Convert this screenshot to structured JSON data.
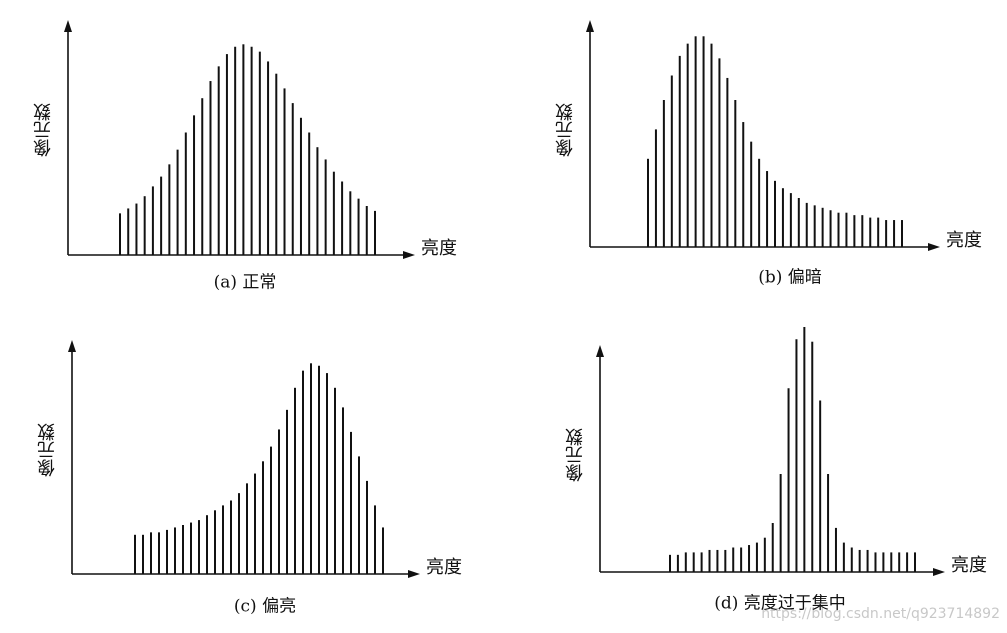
{
  "chart_data": [
    {
      "type": "bar",
      "title": "(a) 正常",
      "x_label": "亮度",
      "y_label": "像元数",
      "color": "#111111",
      "ylim": [
        0,
        100
      ],
      "values": [
        17,
        19,
        21,
        24,
        28,
        32,
        37,
        43,
        50,
        57,
        64,
        71,
        77,
        82,
        85,
        86,
        85,
        83,
        79,
        74,
        68,
        62,
        56,
        50,
        44,
        39,
        34,
        30,
        26,
        23,
        20,
        18
      ]
    },
    {
      "type": "bar",
      "title": "(b) 偏暗",
      "x_label": "亮度",
      "y_label": "像元数",
      "color": "#111111",
      "ylim": [
        0,
        100
      ],
      "values": [
        36,
        48,
        60,
        70,
        78,
        83,
        86,
        86,
        83,
        77,
        69,
        60,
        51,
        43,
        36,
        31,
        27,
        24,
        22,
        20,
        18,
        17,
        16,
        15,
        14,
        14,
        13,
        13,
        12,
        12,
        11,
        11,
        11
      ]
    },
    {
      "type": "bar",
      "title": "(c) 偏亮",
      "x_label": "亮度",
      "y_label": "像元数",
      "color": "#111111",
      "ylim": [
        0,
        100
      ],
      "values": [
        16,
        16,
        17,
        17,
        18,
        19,
        20,
        21,
        22,
        24,
        26,
        28,
        30,
        33,
        37,
        41,
        46,
        52,
        59,
        67,
        76,
        83,
        86,
        85,
        82,
        76,
        68,
        58,
        48,
        38,
        28,
        19
      ]
    },
    {
      "type": "bar",
      "title": "(d) 亮度过于集中",
      "x_label": "亮度",
      "y_label": "像元数",
      "color": "#111111",
      "ylim": [
        0,
        100
      ],
      "values": [
        7,
        7,
        8,
        8,
        8,
        9,
        9,
        9,
        10,
        10,
        11,
        12,
        14,
        20,
        40,
        75,
        95,
        100,
        94,
        70,
        40,
        18,
        12,
        10,
        9,
        9,
        8,
        8,
        8,
        8,
        8,
        8
      ]
    }
  ],
  "watermark": "https://blog.csdn.net/q923714892"
}
